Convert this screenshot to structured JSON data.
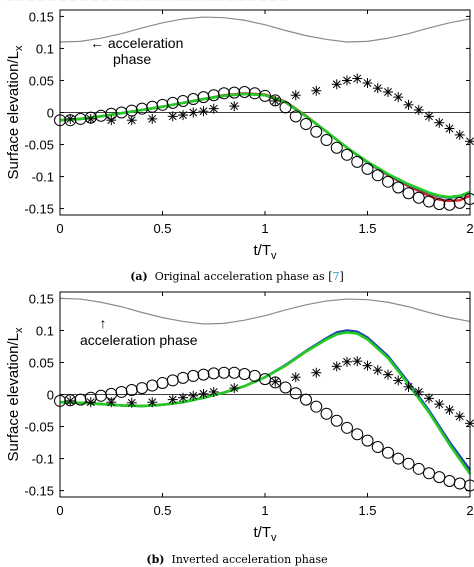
{
  "header_fragment": "— — — — — — — — — — — — — — — — — — — — — — — — — — —",
  "captions": [
    {
      "tag": "(a)",
      "text": "Original acceleration phase as [",
      "ref": "7",
      "close": "]"
    },
    {
      "tag": "(b)",
      "text": "Inverted acceleration phase",
      "ref": "",
      "close": ""
    }
  ],
  "colors": {
    "gray": "#8c8c8c",
    "red": "#d62728",
    "blue": "#1f3fb4",
    "green": "#22cc22",
    "black": "#000000"
  },
  "chart_data": [
    {
      "type": "line",
      "ylabel": "Surface elevation/L",
      "ylabel_sub": "x",
      "xlabel": "t/T",
      "xlabel_sub": "v",
      "xlim": [
        0,
        2
      ],
      "ylim": [
        -0.16,
        0.16
      ],
      "xticks": [
        "0",
        "0.5",
        "1",
        "1.5",
        "2"
      ],
      "yticks": [
        "0.15",
        "0.1",
        "0.05",
        "0",
        "-0.05",
        "-0.1",
        "-0.15"
      ],
      "annotation": {
        "arrow": "←",
        "line1": "acceleration",
        "line2": "phase"
      },
      "phase_curve": {
        "name": "acceleration phase",
        "x": [
          0,
          0.1,
          0.2,
          0.3,
          0.4,
          0.5,
          0.6,
          0.7,
          0.8,
          0.9,
          1.0,
          1.1,
          1.2,
          1.3,
          1.4,
          1.5,
          1.6,
          1.7,
          1.8,
          1.9,
          2.0
        ],
        "y": [
          0.11,
          0.111,
          0.116,
          0.123,
          0.132,
          0.14,
          0.146,
          0.149,
          0.148,
          0.144,
          0.137,
          0.128,
          0.12,
          0.114,
          0.11,
          0.111,
          0.116,
          0.123,
          0.132,
          0.14,
          0.146
        ]
      },
      "series": [
        {
          "style": "line",
          "color": "red",
          "x": [
            0,
            0.1,
            0.2,
            0.3,
            0.4,
            0.5,
            0.6,
            0.7,
            0.8,
            0.9,
            1.0,
            1.1,
            1.2,
            1.3,
            1.4,
            1.5,
            1.6,
            1.7,
            1.8,
            1.85,
            1.9,
            1.95,
            2.0
          ],
          "y": [
            -0.012,
            -0.01,
            -0.006,
            -0.001,
            0.004,
            0.009,
            0.015,
            0.021,
            0.027,
            0.03,
            0.028,
            0.017,
            -0.005,
            -0.03,
            -0.055,
            -0.078,
            -0.098,
            -0.115,
            -0.13,
            -0.136,
            -0.138,
            -0.137,
            -0.13
          ]
        },
        {
          "style": "line",
          "color": "blue",
          "x": [
            0,
            0.1,
            0.2,
            0.3,
            0.4,
            0.5,
            0.6,
            0.7,
            0.8,
            0.9,
            1.0,
            1.1,
            1.2,
            1.3,
            1.4,
            1.5,
            1.6,
            1.7,
            1.8,
            1.85,
            1.9,
            1.95,
            2.0
          ],
          "y": [
            -0.012,
            -0.01,
            -0.006,
            -0.001,
            0.004,
            0.009,
            0.015,
            0.021,
            0.026,
            0.029,
            0.027,
            0.016,
            -0.006,
            -0.03,
            -0.055,
            -0.078,
            -0.097,
            -0.113,
            -0.126,
            -0.131,
            -0.133,
            -0.131,
            -0.125
          ]
        },
        {
          "style": "line",
          "color": "green",
          "x": [
            0,
            0.1,
            0.2,
            0.3,
            0.4,
            0.5,
            0.6,
            0.7,
            0.8,
            0.9,
            1.0,
            1.1,
            1.2,
            1.3,
            1.4,
            1.5,
            1.6,
            1.7,
            1.8,
            1.85,
            1.9,
            1.95,
            2.0
          ],
          "y": [
            -0.012,
            -0.01,
            -0.006,
            -0.001,
            0.004,
            0.009,
            0.015,
            0.021,
            0.026,
            0.029,
            0.027,
            0.016,
            -0.006,
            -0.03,
            -0.055,
            -0.077,
            -0.096,
            -0.112,
            -0.125,
            -0.13,
            -0.132,
            -0.13,
            -0.124
          ]
        },
        {
          "style": "circle",
          "color": "black",
          "x": [
            0,
            0.05,
            0.1,
            0.15,
            0.2,
            0.25,
            0.3,
            0.35,
            0.4,
            0.45,
            0.5,
            0.55,
            0.6,
            0.65,
            0.7,
            0.75,
            0.8,
            0.85,
            0.9,
            0.95,
            1.0,
            1.05,
            1.1,
            1.15,
            1.2,
            1.25,
            1.3,
            1.35,
            1.4,
            1.45,
            1.5,
            1.55,
            1.6,
            1.65,
            1.7,
            1.75,
            1.8,
            1.85,
            1.9,
            1.95,
            2.0
          ],
          "y": [
            -0.012,
            -0.012,
            -0.01,
            -0.008,
            -0.005,
            -0.002,
            0.0,
            0.003,
            0.006,
            0.009,
            0.012,
            0.015,
            0.018,
            0.021,
            0.024,
            0.027,
            0.03,
            0.031,
            0.032,
            0.03,
            0.026,
            0.019,
            0.008,
            -0.006,
            -0.018,
            -0.03,
            -0.043,
            -0.055,
            -0.066,
            -0.077,
            -0.088,
            -0.098,
            -0.108,
            -0.117,
            -0.126,
            -0.133,
            -0.139,
            -0.143,
            -0.144,
            -0.141,
            -0.135
          ]
        },
        {
          "style": "star",
          "color": "black",
          "x": [
            0.05,
            0.15,
            0.25,
            0.35,
            0.45,
            0.55,
            0.6,
            0.65,
            0.7,
            0.75,
            0.85,
            1.05,
            1.15,
            1.25,
            1.35,
            1.4,
            1.45,
            1.5,
            1.55,
            1.6,
            1.65,
            1.7,
            1.75,
            1.8,
            1.85,
            1.9,
            1.95,
            2.0
          ],
          "y": [
            -0.01,
            -0.01,
            -0.012,
            -0.012,
            -0.01,
            -0.006,
            -0.004,
            0.0,
            0.002,
            0.006,
            0.01,
            0.018,
            0.027,
            0.034,
            0.044,
            0.05,
            0.053,
            0.046,
            0.038,
            0.032,
            0.024,
            0.012,
            0.004,
            -0.006,
            -0.016,
            -0.025,
            -0.035,
            -0.045
          ]
        }
      ]
    },
    {
      "type": "line",
      "ylabel": "Surface elevation/L",
      "ylabel_sub": "x",
      "xlabel": "t/T",
      "xlabel_sub": "v",
      "xlim": [
        0,
        2
      ],
      "ylim": [
        -0.16,
        0.16
      ],
      "xticks": [
        "0",
        "0.5",
        "1",
        "1.5",
        "2"
      ],
      "yticks": [
        "0.15",
        "0.1",
        "0.05",
        "0",
        "-0.05",
        "-0.1",
        "-0.15"
      ],
      "annotation": {
        "arrow": "↑",
        "line1": "acceleration phase",
        "line2": ""
      },
      "phase_curve": {
        "name": "acceleration phase",
        "x": [
          0,
          0.1,
          0.2,
          0.3,
          0.4,
          0.5,
          0.6,
          0.7,
          0.8,
          0.9,
          1.0,
          1.1,
          1.2,
          1.3,
          1.4,
          1.5,
          1.6,
          1.7,
          1.8,
          1.9,
          2.0
        ],
        "y": [
          0.15,
          0.149,
          0.144,
          0.137,
          0.128,
          0.12,
          0.114,
          0.11,
          0.111,
          0.116,
          0.123,
          0.132,
          0.14,
          0.146,
          0.149,
          0.148,
          0.144,
          0.137,
          0.128,
          0.12,
          0.114
        ]
      },
      "series": [
        {
          "style": "line",
          "color": "red",
          "x": [
            0,
            0.1,
            0.2,
            0.3,
            0.4,
            0.5,
            0.6,
            0.7,
            0.8,
            0.9,
            1.0,
            1.1,
            1.2,
            1.3,
            1.35,
            1.4,
            1.45,
            1.5,
            1.6,
            1.7,
            1.8,
            1.9,
            2.0
          ],
          "y": [
            -0.012,
            -0.013,
            -0.015,
            -0.017,
            -0.018,
            -0.016,
            -0.012,
            -0.005,
            0.003,
            0.013,
            0.027,
            0.045,
            0.067,
            0.087,
            0.095,
            0.098,
            0.096,
            0.087,
            0.058,
            0.017,
            -0.026,
            -0.075,
            -0.118
          ]
        },
        {
          "style": "line",
          "color": "blue",
          "x": [
            0,
            0.1,
            0.2,
            0.3,
            0.4,
            0.5,
            0.6,
            0.7,
            0.8,
            0.9,
            1.0,
            1.1,
            1.2,
            1.3,
            1.35,
            1.4,
            1.45,
            1.5,
            1.6,
            1.7,
            1.8,
            1.9,
            2.0
          ],
          "y": [
            -0.012,
            -0.013,
            -0.015,
            -0.017,
            -0.018,
            -0.016,
            -0.012,
            -0.005,
            0.003,
            0.013,
            0.027,
            0.046,
            0.068,
            0.088,
            0.097,
            0.1,
            0.098,
            0.089,
            0.06,
            0.019,
            -0.025,
            -0.074,
            -0.118
          ]
        },
        {
          "style": "line",
          "color": "green",
          "x": [
            0,
            0.1,
            0.2,
            0.3,
            0.4,
            0.5,
            0.6,
            0.7,
            0.8,
            0.9,
            1.0,
            1.1,
            1.2,
            1.3,
            1.35,
            1.4,
            1.45,
            1.5,
            1.6,
            1.7,
            1.8,
            1.9,
            2.0
          ],
          "y": [
            -0.012,
            -0.013,
            -0.015,
            -0.017,
            -0.018,
            -0.016,
            -0.012,
            -0.005,
            0.003,
            0.013,
            0.027,
            0.045,
            0.067,
            0.086,
            0.094,
            0.097,
            0.095,
            0.086,
            0.057,
            0.016,
            -0.028,
            -0.078,
            -0.124
          ]
        },
        {
          "style": "circle",
          "color": "black",
          "x": [
            0,
            0.05,
            0.1,
            0.15,
            0.2,
            0.25,
            0.3,
            0.35,
            0.4,
            0.45,
            0.5,
            0.55,
            0.6,
            0.65,
            0.7,
            0.75,
            0.8,
            0.85,
            0.9,
            0.95,
            1.0,
            1.05,
            1.1,
            1.15,
            1.2,
            1.25,
            1.3,
            1.35,
            1.4,
            1.45,
            1.5,
            1.55,
            1.6,
            1.65,
            1.7,
            1.75,
            1.8,
            1.85,
            1.9,
            1.95,
            2.0
          ],
          "y": [
            -0.01,
            -0.009,
            -0.008,
            -0.005,
            -0.002,
            0.001,
            0.004,
            0.007,
            0.01,
            0.014,
            0.018,
            0.022,
            0.026,
            0.029,
            0.031,
            0.033,
            0.034,
            0.034,
            0.032,
            0.029,
            0.024,
            0.019,
            0.011,
            0.002,
            -0.008,
            -0.019,
            -0.03,
            -0.041,
            -0.052,
            -0.062,
            -0.072,
            -0.082,
            -0.091,
            -0.1,
            -0.108,
            -0.116,
            -0.123,
            -0.129,
            -0.135,
            -0.139,
            -0.142
          ]
        },
        {
          "style": "star",
          "color": "black",
          "x": [
            0.05,
            0.15,
            0.25,
            0.35,
            0.45,
            0.55,
            0.6,
            0.65,
            0.7,
            0.75,
            0.85,
            1.05,
            1.15,
            1.25,
            1.35,
            1.4,
            1.45,
            1.5,
            1.55,
            1.6,
            1.65,
            1.7,
            1.75,
            1.8,
            1.85,
            1.9,
            1.95,
            2.0
          ],
          "y": [
            -0.01,
            -0.012,
            -0.012,
            -0.013,
            -0.012,
            -0.008,
            -0.005,
            -0.002,
            0.001,
            0.004,
            0.01,
            0.02,
            0.027,
            0.034,
            0.044,
            0.051,
            0.052,
            0.045,
            0.038,
            0.031,
            0.022,
            0.012,
            0.004,
            -0.006,
            -0.015,
            -0.024,
            -0.034,
            -0.045
          ]
        }
      ]
    }
  ]
}
